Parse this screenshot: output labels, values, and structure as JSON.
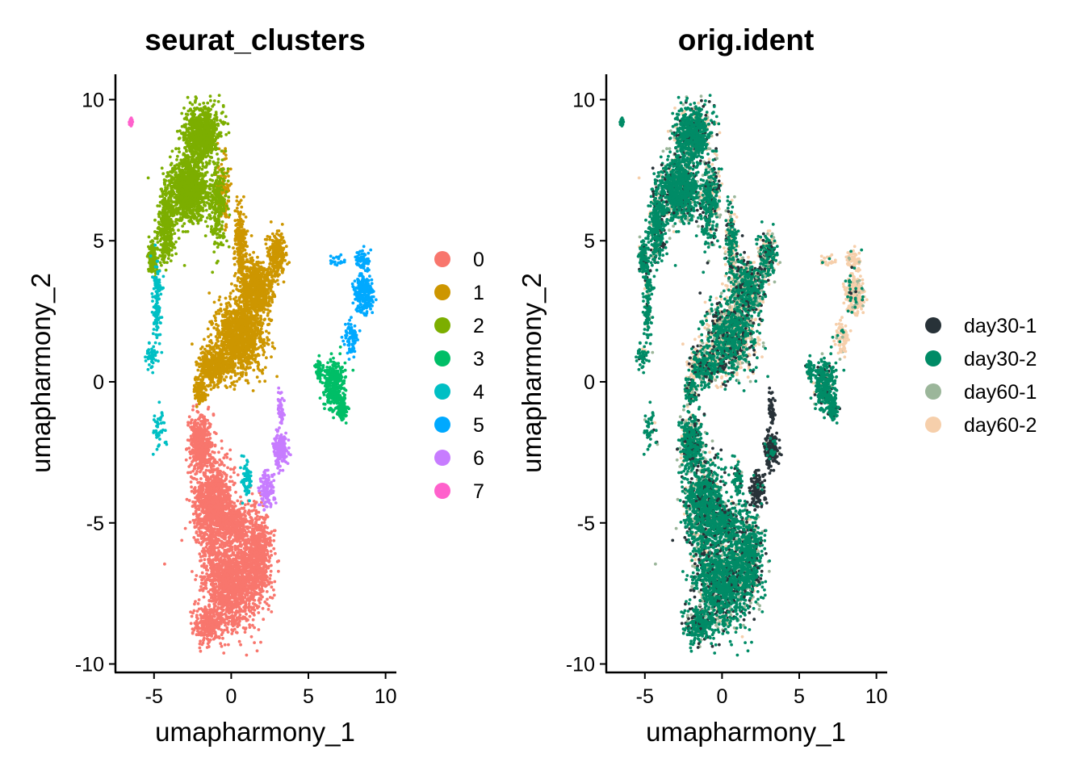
{
  "chart_data": [
    {
      "type": "scatter",
      "title": "seurat_clusters",
      "xlabel": "umapharmony_1",
      "ylabel": "umapharmony_2",
      "xlim": [
        -7.5,
        10.7
      ],
      "ylim": [
        -10.3,
        10.9
      ],
      "xticks": [
        {
          "value": -5,
          "label": "-5"
        },
        {
          "value": 0,
          "label": "0"
        },
        {
          "value": 5,
          "label": "5"
        },
        {
          "value": 10,
          "label": "10"
        }
      ],
      "yticks": [
        {
          "value": -10,
          "label": "-10"
        },
        {
          "value": -5,
          "label": "-5"
        },
        {
          "value": 0,
          "label": "0"
        },
        {
          "value": 5,
          "label": "5"
        },
        {
          "value": 10,
          "label": "10"
        }
      ],
      "grid": false,
      "legend_position": "right",
      "series": [
        {
          "name": "0",
          "color": "#F8766D",
          "point_count": 4200
        },
        {
          "name": "1",
          "color": "#CD9600",
          "point_count": 3000
        },
        {
          "name": "2",
          "color": "#7CAE00",
          "point_count": 2600
        },
        {
          "name": "3",
          "color": "#00BE67",
          "point_count": 480
        },
        {
          "name": "4",
          "color": "#00BFC4",
          "point_count": 280
        },
        {
          "name": "5",
          "color": "#00A9FF",
          "point_count": 420
        },
        {
          "name": "6",
          "color": "#C77CFF",
          "point_count": 380
        },
        {
          "name": "7",
          "color": "#FF61CC",
          "point_count": 25
        }
      ]
    },
    {
      "type": "scatter",
      "title": "orig.ident",
      "xlabel": "umapharmony_1",
      "ylabel": "umapharmony_2",
      "xlim": [
        -7.5,
        10.7
      ],
      "ylim": [
        -10.3,
        10.9
      ],
      "xticks": [
        {
          "value": -5,
          "label": "-5"
        },
        {
          "value": 0,
          "label": "0"
        },
        {
          "value": 5,
          "label": "5"
        },
        {
          "value": 10,
          "label": "10"
        }
      ],
      "yticks": [
        {
          "value": -10,
          "label": "-10"
        },
        {
          "value": -5,
          "label": "-5"
        },
        {
          "value": 0,
          "label": "0"
        },
        {
          "value": 5,
          "label": "5"
        },
        {
          "value": 10,
          "label": "10"
        }
      ],
      "grid": false,
      "legend_position": "right",
      "series": [
        {
          "name": "day30-1",
          "color": "#283238"
        },
        {
          "name": "day30-2",
          "color": "#008B66"
        },
        {
          "name": "day60-1",
          "color": "#9BB69A"
        },
        {
          "name": "day60-2",
          "color": "#F6CFAB"
        }
      ]
    }
  ],
  "regions": [
    {
      "cluster": 0,
      "sample_mix": [
        0.14,
        0.62,
        0.16,
        0.08
      ],
      "blobs": [
        {
          "cx": 0.0,
          "cy": -7.1,
          "sx": 1.45,
          "sy": 1.35,
          "w": 1.0
        },
        {
          "cx": -1.2,
          "cy": -4.3,
          "sx": 0.95,
          "sy": 1.25,
          "w": 0.75
        },
        {
          "cx": -2.0,
          "cy": -2.2,
          "sx": 0.55,
          "sy": 0.8,
          "w": 0.35
        },
        {
          "cx": 1.7,
          "cy": -6.1,
          "sx": 0.75,
          "sy": 1.2,
          "w": 0.45
        },
        {
          "cx": -1.5,
          "cy": -8.6,
          "sx": 0.7,
          "sy": 0.45,
          "w": 0.25
        },
        {
          "cx": 0.1,
          "cy": -5.0,
          "sx": 0.8,
          "sy": 0.5,
          "w": 0.25
        }
      ]
    },
    {
      "cluster": 1,
      "sample_mix": [
        0.15,
        0.45,
        0.12,
        0.28
      ],
      "blobs": [
        {
          "cx": 0.6,
          "cy": 1.6,
          "sx": 1.2,
          "sy": 1.0,
          "w": 1.0
        },
        {
          "cx": 1.6,
          "cy": 3.3,
          "sx": 0.8,
          "sy": 0.8,
          "w": 0.65
        },
        {
          "cx": -1.0,
          "cy": 0.6,
          "sx": 0.85,
          "sy": 0.6,
          "w": 0.45
        },
        {
          "cx": 0.6,
          "cy": 5.0,
          "sx": 0.3,
          "sy": 0.9,
          "w": 0.22
        },
        {
          "cx": 3.0,
          "cy": 4.5,
          "sx": 0.5,
          "sy": 0.6,
          "w": 0.2
        },
        {
          "cx": -0.5,
          "cy": 6.7,
          "sx": 0.3,
          "sy": 1.0,
          "w": 0.12
        },
        {
          "cx": -2.0,
          "cy": -0.3,
          "sx": 0.3,
          "sy": 0.4,
          "w": 0.1
        }
      ]
    },
    {
      "cluster": 2,
      "sample_mix": [
        0.12,
        0.65,
        0.13,
        0.1
      ],
      "blobs": [
        {
          "cx": -2.7,
          "cy": 6.8,
          "sx": 0.9,
          "sy": 0.9,
          "w": 1.0
        },
        {
          "cx": -1.9,
          "cy": 8.8,
          "sx": 0.9,
          "sy": 0.75,
          "w": 0.85
        },
        {
          "cx": -4.2,
          "cy": 5.6,
          "sx": 0.45,
          "sy": 1.0,
          "w": 0.45
        },
        {
          "cx": -0.9,
          "cy": 6.2,
          "sx": 0.45,
          "sy": 1.1,
          "w": 0.3
        },
        {
          "cx": -5.1,
          "cy": 4.4,
          "sx": 0.25,
          "sy": 0.5,
          "w": 0.12
        }
      ]
    },
    {
      "cluster": 3,
      "sample_mix": [
        0.1,
        0.8,
        0.05,
        0.05
      ],
      "blobs": [
        {
          "cx": 6.6,
          "cy": -0.1,
          "sx": 0.55,
          "sy": 0.65,
          "w": 1.0
        },
        {
          "cx": 7.2,
          "cy": -0.9,
          "sx": 0.3,
          "sy": 0.35,
          "w": 0.4
        },
        {
          "cx": 5.7,
          "cy": 0.5,
          "sx": 0.2,
          "sy": 0.3,
          "w": 0.15
        }
      ]
    },
    {
      "cluster": 4,
      "sample_mix": [
        0.08,
        0.82,
        0.06,
        0.04
      ],
      "blobs": [
        {
          "cx": -4.8,
          "cy": 2.6,
          "sx": 0.25,
          "sy": 1.2,
          "w": 1.0
        },
        {
          "cx": -5.2,
          "cy": 0.9,
          "sx": 0.25,
          "sy": 0.35,
          "w": 0.35
        },
        {
          "cx": -4.7,
          "cy": -1.6,
          "sx": 0.3,
          "sy": 0.55,
          "w": 0.35
        },
        {
          "cx": 1.0,
          "cy": -3.5,
          "sx": 0.25,
          "sy": 0.5,
          "w": 0.4
        }
      ]
    },
    {
      "cluster": 5,
      "sample_mix": [
        0.02,
        0.08,
        0.05,
        0.85
      ],
      "blobs": [
        {
          "cx": 8.6,
          "cy": 3.1,
          "sx": 0.45,
          "sy": 0.55,
          "w": 1.0
        },
        {
          "cx": 8.5,
          "cy": 4.3,
          "sx": 0.35,
          "sy": 0.3,
          "w": 0.35
        },
        {
          "cx": 7.8,
          "cy": 1.6,
          "sx": 0.35,
          "sy": 0.55,
          "w": 0.3
        },
        {
          "cx": 6.9,
          "cy": 4.3,
          "sx": 0.4,
          "sy": 0.15,
          "w": 0.12
        }
      ]
    },
    {
      "cluster": 6,
      "sample_mix": [
        0.93,
        0.05,
        0.01,
        0.01
      ],
      "blobs": [
        {
          "cx": 3.2,
          "cy": -2.4,
          "sx": 0.35,
          "sy": 0.45,
          "w": 1.0
        },
        {
          "cx": 2.3,
          "cy": -3.8,
          "sx": 0.4,
          "sy": 0.6,
          "w": 0.6
        },
        {
          "cx": 3.2,
          "cy": -1.0,
          "sx": 0.15,
          "sy": 0.4,
          "w": 0.2
        }
      ]
    },
    {
      "cluster": 7,
      "sample_mix": [
        0.05,
        0.9,
        0.03,
        0.02
      ],
      "blobs": [
        {
          "cx": -6.5,
          "cy": 9.2,
          "sx": 0.1,
          "sy": 0.1,
          "w": 1.0
        }
      ]
    }
  ]
}
